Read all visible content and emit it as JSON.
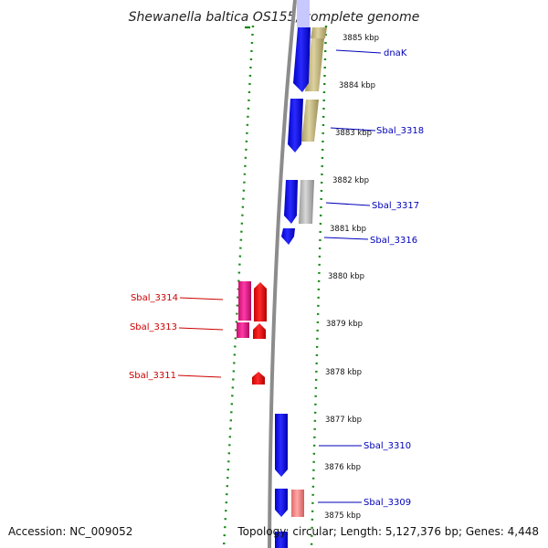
{
  "title": "Shewanella baltica OS155, complete genome",
  "accession": "Accession: NC_009052",
  "topology": "Topology: circular; Length: 5,127,376 bp; Genes: 4,448",
  "colors": {
    "forward_gene": "#1a1ae6",
    "reverse_gene": "#e61a1a",
    "reverse_rna": "#e6198c",
    "reverse_rna_label": "#cc0000",
    "forward_label": "#0000bb",
    "forward_cds_track": "#c9bd85",
    "grey_feature": "#b4b4b4",
    "pink_feature": "#f08080",
    "backbone": "#8c8c8c",
    "dotted_ring": "#1a8a1a"
  },
  "kbp_ticks": [
    "3885 kbp",
    "3884 kbp",
    "3883 kbp",
    "3882 kbp",
    "3881 kbp",
    "3880 kbp",
    "3879 kbp",
    "3878 kbp",
    "3877 kbp",
    "3876 kbp",
    "3875 kbp"
  ],
  "forward_genes": [
    {
      "label": "dnaK"
    },
    {
      "label": "Sbal_3318"
    },
    {
      "label": "Sbal_3317"
    },
    {
      "label": "Sbal_3316"
    },
    {
      "label": "Sbal_3310"
    },
    {
      "label": "Sbal_3309"
    }
  ],
  "reverse_genes": [
    {
      "label": "Sbal_3314"
    },
    {
      "label": "Sbal_3313"
    },
    {
      "label": "Sbal_3311"
    }
  ]
}
